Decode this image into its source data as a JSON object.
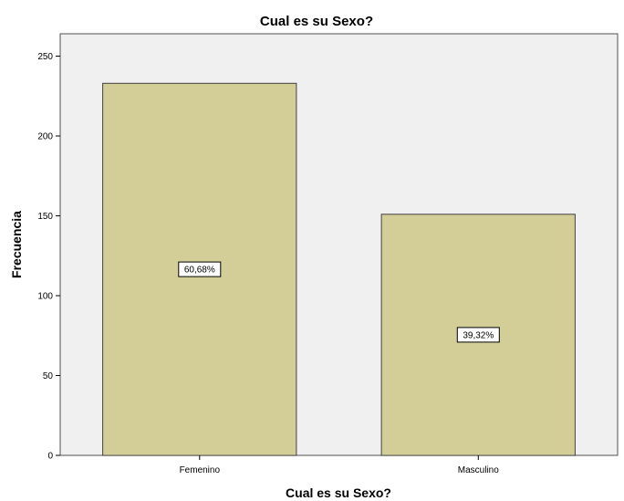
{
  "chart_data": {
    "type": "bar",
    "title": "Cual es su Sexo?",
    "xlabel": "Cual es su Sexo?",
    "ylabel": "Frecuencia",
    "categories": [
      "Femenino",
      "Masculino"
    ],
    "values": [
      233,
      151
    ],
    "data_labels": [
      "60,68%",
      "39,32%"
    ],
    "ylim": [
      0,
      264
    ],
    "yticks": [
      0,
      50,
      100,
      150,
      200,
      250
    ],
    "grid": false,
    "legend": "none",
    "colors": {
      "bar_fill": "#d3ce97",
      "bar_stroke": "#404040",
      "plot_background": "#f0f0f0",
      "plot_border": "#505050",
      "label_box_fill": "#ffffff"
    }
  }
}
